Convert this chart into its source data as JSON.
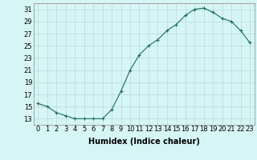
{
  "x": [
    0,
    1,
    2,
    3,
    4,
    5,
    6,
    7,
    8,
    9,
    10,
    11,
    12,
    13,
    14,
    15,
    16,
    17,
    18,
    19,
    20,
    21,
    22,
    23
  ],
  "y": [
    15.5,
    15.0,
    14.0,
    13.5,
    13.0,
    13.0,
    13.0,
    13.0,
    14.5,
    17.5,
    21.0,
    23.5,
    25.0,
    26.0,
    27.5,
    28.5,
    30.0,
    31.0,
    31.2,
    30.5,
    29.5,
    29.0,
    27.5,
    25.5
  ],
  "line_color": "#1a6b5a",
  "marker": "+",
  "bg_color": "#d6f5f5",
  "grid_color": "#b8dada",
  "xlabel": "Humidex (Indice chaleur)",
  "ylim": [
    12,
    32
  ],
  "xlim": [
    -0.5,
    23.5
  ],
  "yticks": [
    13,
    15,
    17,
    19,
    21,
    23,
    25,
    27,
    29,
    31
  ],
  "xticks": [
    0,
    1,
    2,
    3,
    4,
    5,
    6,
    7,
    8,
    9,
    10,
    11,
    12,
    13,
    14,
    15,
    16,
    17,
    18,
    19,
    20,
    21,
    22,
    23
  ],
  "fontsize_axis": 6,
  "fontsize_label": 7
}
